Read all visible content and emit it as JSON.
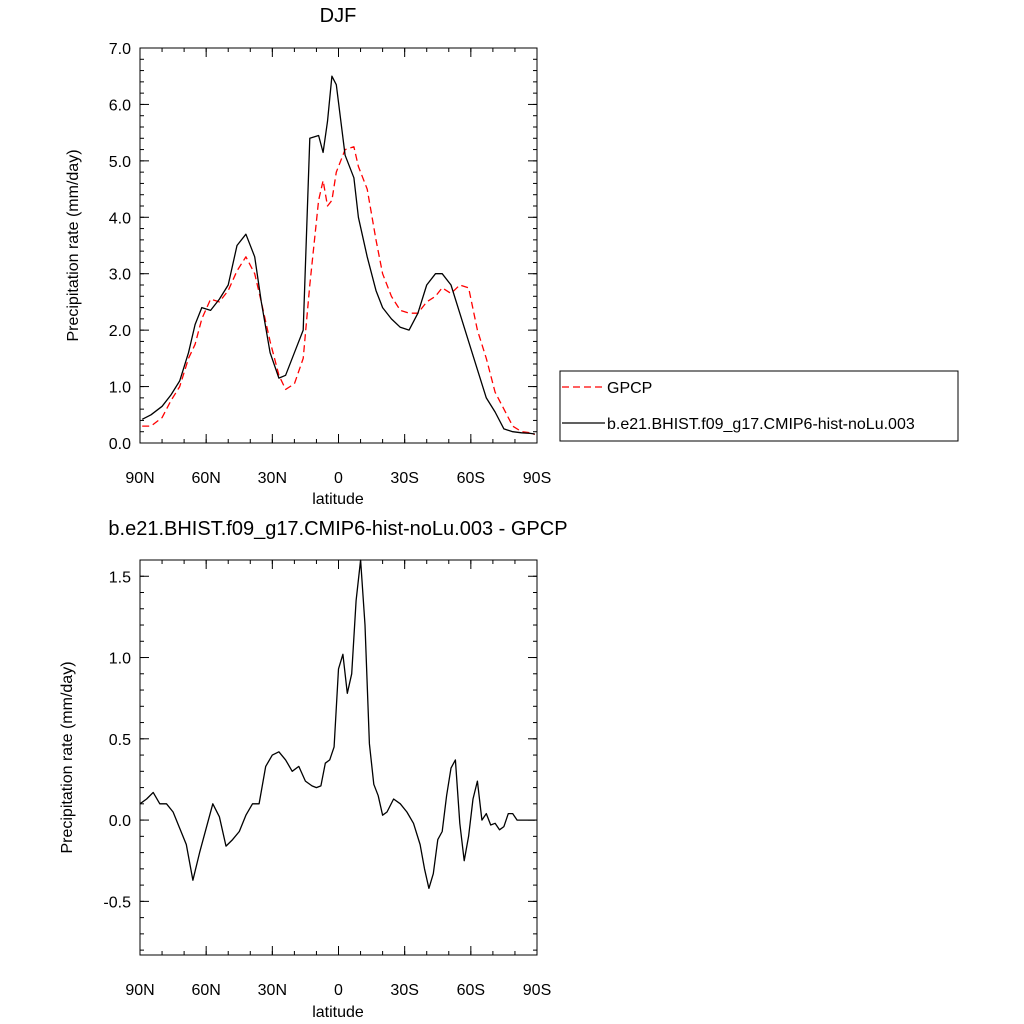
{
  "chart_data": [
    {
      "type": "line",
      "title": "DJF",
      "xlabel": "latitude",
      "ylabel": "Precipitation rate (mm/day)",
      "xlim": [
        90,
        -90
      ],
      "ylim": [
        0,
        7
      ],
      "x_ticks": [
        {
          "value": 90,
          "label": "90N"
        },
        {
          "value": 60,
          "label": "60N"
        },
        {
          "value": 30,
          "label": "30N"
        },
        {
          "value": 0,
          "label": "0"
        },
        {
          "value": -30,
          "label": "30S"
        },
        {
          "value": -60,
          "label": "60S"
        },
        {
          "value": -90,
          "label": "90S"
        }
      ],
      "y_ticks": [
        {
          "value": 0,
          "label": "0.0"
        },
        {
          "value": 1,
          "label": "1.0"
        },
        {
          "value": 2,
          "label": "2.0"
        },
        {
          "value": 3,
          "label": "3.0"
        },
        {
          "value": 4,
          "label": "4.0"
        },
        {
          "value": 5,
          "label": "5.0"
        },
        {
          "value": 6,
          "label": "6.0"
        },
        {
          "value": 7,
          "label": "7.0"
        }
      ],
      "legend": "right",
      "series": [
        {
          "name": "GPCP",
          "color": "#ff0000",
          "dash": true,
          "x": [
            89,
            85,
            80,
            76,
            72,
            68,
            65,
            62,
            58,
            54,
            50,
            46,
            42,
            38,
            35,
            31,
            27,
            24,
            20,
            16,
            13,
            9,
            7,
            5,
            3,
            1,
            -3,
            -7,
            -9,
            -13,
            -17,
            -20,
            -24,
            -28,
            -32,
            -36,
            -40,
            -44,
            -47,
            -51,
            -55,
            -59,
            -63,
            -67,
            -71,
            -75,
            -79,
            -83,
            -87,
            -89
          ],
          "y": [
            0.3,
            0.3,
            0.45,
            0.75,
            1.0,
            1.5,
            1.75,
            2.2,
            2.55,
            2.5,
            2.7,
            3.05,
            3.3,
            3.0,
            2.5,
            1.8,
            1.2,
            0.95,
            1.05,
            1.5,
            2.8,
            4.3,
            4.65,
            4.2,
            4.3,
            4.8,
            5.2,
            5.25,
            4.9,
            4.5,
            3.6,
            3.0,
            2.6,
            2.35,
            2.3,
            2.3,
            2.5,
            2.6,
            2.75,
            2.65,
            2.8,
            2.75,
            2.0,
            1.5,
            0.9,
            0.6,
            0.3,
            0.2,
            0.18,
            0.15
          ]
        },
        {
          "name": "b.e21.BHIST.f09_g17.CMIP6-hist-noLu.003",
          "color": "#000000",
          "dash": false,
          "x": [
            89,
            85,
            80,
            76,
            72,
            68,
            65,
            62,
            58,
            54,
            50,
            46,
            42,
            38,
            35,
            31,
            27,
            24,
            20,
            16,
            13,
            9,
            7,
            5,
            3,
            1,
            -3,
            -7,
            -9,
            -13,
            -17,
            -20,
            -24,
            -28,
            -32,
            -36,
            -40,
            -44,
            -47,
            -51,
            -55,
            -59,
            -63,
            -67,
            -71,
            -75,
            -79,
            -83,
            -87,
            -89
          ],
          "y": [
            0.42,
            0.5,
            0.65,
            0.85,
            1.1,
            1.6,
            2.1,
            2.4,
            2.35,
            2.55,
            2.8,
            3.5,
            3.7,
            3.3,
            2.5,
            1.6,
            1.15,
            1.2,
            1.6,
            2.0,
            5.4,
            5.45,
            5.15,
            5.7,
            6.5,
            6.35,
            5.1,
            4.7,
            4.0,
            3.3,
            2.7,
            2.4,
            2.2,
            2.05,
            2.0,
            2.3,
            2.8,
            3.0,
            3.0,
            2.8,
            2.3,
            1.8,
            1.3,
            0.8,
            0.55,
            0.25,
            0.2,
            0.18,
            0.17,
            0.16
          ]
        }
      ]
    },
    {
      "type": "line",
      "title": "b.e21.BHIST.f09_g17.CMIP6-hist-noLu.003 - GPCP",
      "xlabel": "latitude",
      "ylabel": "Precipitation rate (mm/day)",
      "xlim": [
        90,
        -90
      ],
      "ylim": [
        -0.83,
        1.6
      ],
      "x_ticks": [
        {
          "value": 90,
          "label": "90N"
        },
        {
          "value": 60,
          "label": "60N"
        },
        {
          "value": 30,
          "label": "30N"
        },
        {
          "value": 0,
          "label": "0"
        },
        {
          "value": -30,
          "label": "30S"
        },
        {
          "value": -60,
          "label": "60S"
        },
        {
          "value": -90,
          "label": "90S"
        }
      ],
      "y_ticks": [
        {
          "value": -0.5,
          "label": "-0.5"
        },
        {
          "value": 0,
          "label": "0.0"
        },
        {
          "value": 0.5,
          "label": "0.5"
        },
        {
          "value": 1,
          "label": "1.0"
        },
        {
          "value": 1.5,
          "label": "1.5"
        }
      ],
      "series": [
        {
          "color": "#000000",
          "dash": false,
          "x": [
            90,
            87,
            84,
            81,
            78,
            75,
            72,
            69,
            66,
            63,
            60,
            57,
            54,
            51,
            48,
            45,
            42,
            39,
            36,
            33,
            30,
            27,
            24,
            21,
            18,
            15,
            12,
            10,
            8,
            6,
            4,
            2,
            0,
            -2,
            -4,
            -6,
            -8,
            -10,
            -12,
            -14,
            -16,
            -18,
            -20,
            -22,
            -25,
            -28,
            -31,
            -34,
            -37,
            -39,
            -41,
            -43,
            -45,
            -47,
            -49,
            -51,
            -53,
            -55,
            -57,
            -59,
            -61,
            -63,
            -65,
            -67,
            -69,
            -71,
            -73,
            -75,
            -77,
            -79,
            -81,
            -83,
            -85,
            -87,
            -89
          ],
          "y": [
            0.1,
            0.13,
            0.17,
            0.1,
            0.1,
            0.05,
            -0.05,
            -0.15,
            -0.37,
            -0.2,
            -0.05,
            0.1,
            0.02,
            -0.16,
            -0.12,
            -0.07,
            0.03,
            0.1,
            0.1,
            0.33,
            0.4,
            0.42,
            0.37,
            0.3,
            0.33,
            0.24,
            0.21,
            0.2,
            0.21,
            0.35,
            0.37,
            0.45,
            0.93,
            1.02,
            0.78,
            0.9,
            1.35,
            1.6,
            1.2,
            0.47,
            0.22,
            0.15,
            0.03,
            0.05,
            0.13,
            0.1,
            0.05,
            -0.02,
            -0.15,
            -0.3,
            -0.42,
            -0.33,
            -0.12,
            -0.07,
            0.15,
            0.32,
            0.37,
            -0.02,
            -0.25,
            -0.1,
            0.13,
            0.24,
            0.0,
            0.04,
            -0.03,
            -0.02,
            -0.06,
            -0.04,
            0.04,
            0.04,
            0.0,
            0.0,
            0.0,
            0.0,
            0.0
          ]
        }
      ]
    }
  ]
}
